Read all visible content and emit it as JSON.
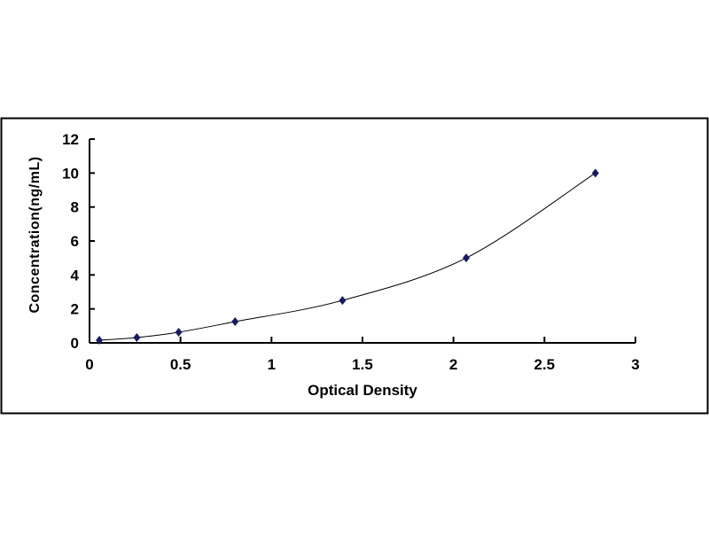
{
  "chart_data": {
    "type": "scatter",
    "title": "",
    "xlabel": "Optical Density",
    "ylabel": "Concentration(ng/mL)",
    "xlim": [
      0,
      3
    ],
    "ylim": [
      0,
      12
    ],
    "x_ticks": [
      "0",
      "0.5",
      "1",
      "1.5",
      "2",
      "2.5",
      "3"
    ],
    "y_ticks": [
      "0",
      "2",
      "4",
      "6",
      "8",
      "10",
      "12"
    ],
    "grid": false,
    "legend": "none",
    "marker": "diamond",
    "fitted_curve": true,
    "series": [
      {
        "x": [
          0.054,
          0.26,
          0.49,
          0.8,
          1.39,
          2.07,
          2.78
        ],
        "y": [
          0.156,
          0.312,
          0.625,
          1.25,
          2.5,
          5,
          10
        ],
        "color": "#1a1a5e"
      }
    ]
  }
}
